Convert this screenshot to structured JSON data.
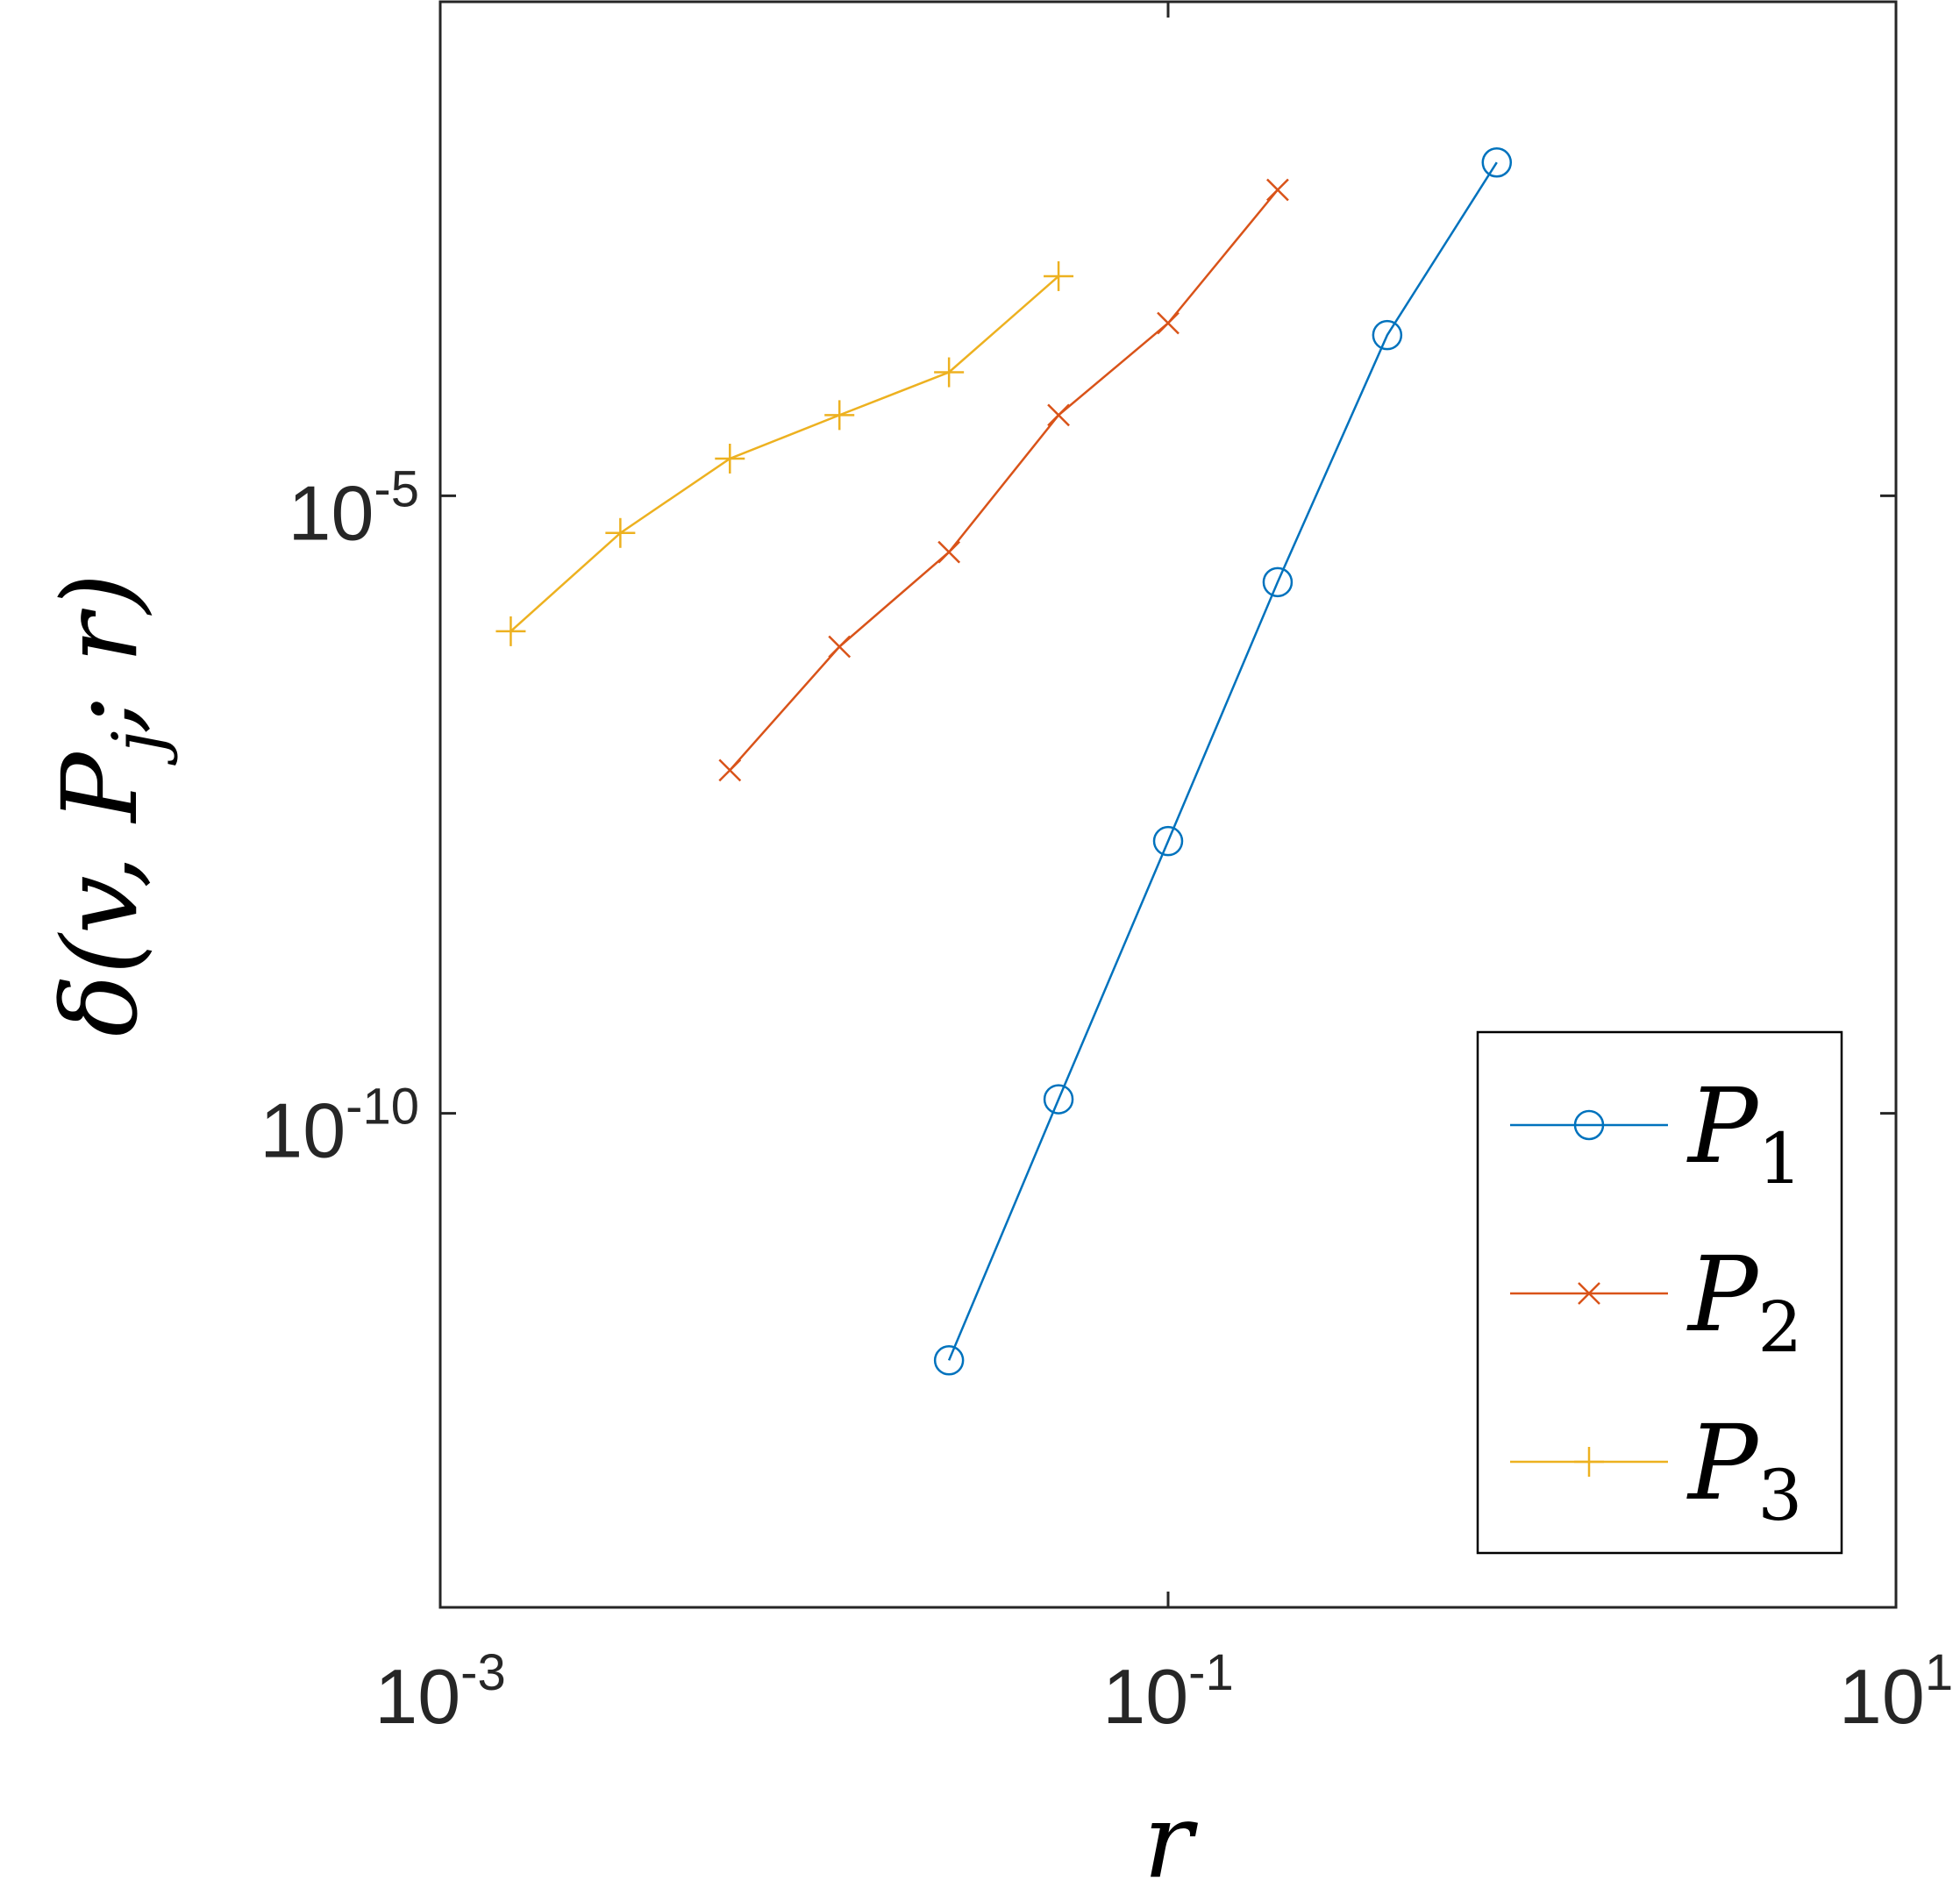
{
  "chart_data": {
    "type": "line",
    "xscale": "log",
    "yscale": "log",
    "xlim": [
      0.001,
      10
    ],
    "ylim": [
      1e-14,
      0.1
    ],
    "xticks": [
      {
        "base": "10",
        "exp": "-3"
      },
      {
        "base": "10",
        "exp": "-1"
      },
      {
        "base": "10",
        "exp": "1"
      }
    ],
    "yticks": [
      {
        "base": "10",
        "exp": "-5"
      },
      {
        "base": "10",
        "exp": "-10"
      }
    ],
    "xlabel": "r",
    "ylabel": "δ(v, P_j; r)",
    "legend_position": "bottom-right",
    "grid": false,
    "series": [
      {
        "name": "P1",
        "color": "#0072BD",
        "marker": "circle",
        "x": [
          0.025,
          0.05,
          0.1,
          0.2,
          0.4,
          0.8
        ],
        "y": [
          1e-12,
          1.3e-10,
          1.6e-08,
          2e-06,
          0.0002,
          0.005
        ]
      },
      {
        "name": "P2",
        "color": "#D95319",
        "marker": "x",
        "x": [
          0.00625,
          0.0125,
          0.025,
          0.05,
          0.1,
          0.2
        ],
        "y": [
          6e-08,
          6e-07,
          3.5e-06,
          4.5e-05,
          0.00025,
          0.003
        ]
      },
      {
        "name": "P3",
        "color": "#EDB120",
        "marker": "plus",
        "x": [
          0.0015625,
          0.003125,
          0.00625,
          0.0125,
          0.025,
          0.05
        ],
        "y": [
          8e-07,
          5e-06,
          2e-05,
          4.5e-05,
          0.0001,
          0.0006
        ]
      }
    ]
  }
}
